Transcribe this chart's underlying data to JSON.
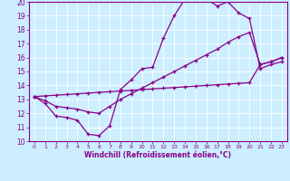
{
  "xlabel": "Windchill (Refroidissement éolien,°C)",
  "xlim": [
    -0.5,
    23.5
  ],
  "ylim": [
    10,
    20
  ],
  "xticks": [
    0,
    1,
    2,
    3,
    4,
    5,
    6,
    7,
    8,
    9,
    10,
    11,
    12,
    13,
    14,
    15,
    16,
    17,
    18,
    19,
    20,
    21,
    22,
    23
  ],
  "yticks": [
    10,
    11,
    12,
    13,
    14,
    15,
    16,
    17,
    18,
    19,
    20
  ],
  "line_color": "#880088",
  "bg_color": "#cceeff",
  "grid_color": "#aaddcc",
  "line1_x": [
    0,
    1,
    2,
    3,
    4,
    5,
    6,
    7,
    8,
    9,
    10,
    11,
    12,
    13,
    14,
    15,
    16,
    17,
    18,
    19,
    20,
    21,
    22,
    23
  ],
  "line1_y": [
    13.2,
    12.7,
    11.8,
    11.7,
    11.5,
    10.5,
    10.4,
    11.1,
    13.7,
    14.4,
    15.2,
    15.3,
    17.4,
    19.0,
    20.2,
    20.2,
    20.2,
    19.7,
    20.0,
    19.2,
    18.8,
    15.2,
    15.5,
    15.7
  ],
  "line2_x": [
    0,
    1,
    2,
    3,
    4,
    5,
    6,
    7,
    8,
    9,
    10,
    11,
    12,
    13,
    14,
    15,
    16,
    17,
    18,
    19,
    20,
    21,
    22,
    23
  ],
  "line2_y": [
    13.2,
    12.9,
    12.5,
    12.4,
    12.3,
    12.1,
    12.0,
    12.5,
    13.0,
    13.4,
    13.8,
    14.2,
    14.6,
    15.0,
    15.4,
    15.8,
    16.2,
    16.6,
    17.1,
    17.5,
    17.8,
    15.5,
    15.7,
    16.0
  ],
  "line3_x": [
    0,
    1,
    2,
    3,
    4,
    5,
    6,
    7,
    8,
    9,
    10,
    11,
    12,
    13,
    14,
    15,
    16,
    17,
    18,
    19,
    20,
    21,
    22,
    23
  ],
  "line3_y": [
    13.2,
    13.25,
    13.3,
    13.35,
    13.4,
    13.45,
    13.5,
    13.55,
    13.6,
    13.65,
    13.7,
    13.75,
    13.8,
    13.85,
    13.9,
    13.95,
    14.0,
    14.05,
    14.1,
    14.15,
    14.2,
    15.5,
    15.7,
    16.0
  ]
}
